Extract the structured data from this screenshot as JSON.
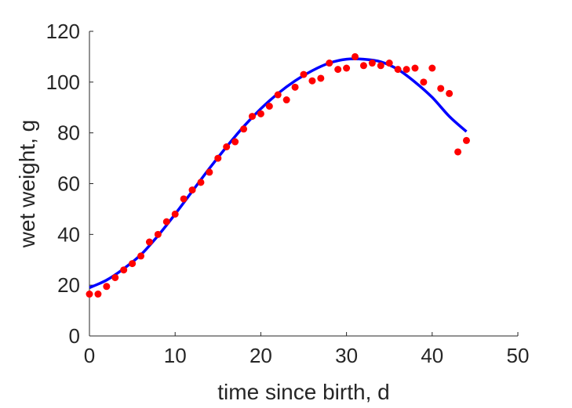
{
  "chart_data": {
    "type": "scatter",
    "title": "",
    "xlabel": "time since birth, d",
    "ylabel": "wet weight, g",
    "xlim": [
      0,
      50
    ],
    "ylim": [
      0,
      120
    ],
    "xticks": [
      "0",
      "10",
      "20",
      "30",
      "40",
      "50"
    ],
    "yticks": [
      "0",
      "20",
      "40",
      "60",
      "80",
      "100",
      "120"
    ],
    "grid": false,
    "legend": "none",
    "series": [
      {
        "kind": "points",
        "color": "#ff0000",
        "x": [
          0,
          1,
          2,
          3,
          4,
          5,
          6,
          7,
          8,
          9,
          10,
          11,
          12,
          13,
          14,
          15,
          16,
          17,
          18,
          19,
          20,
          21,
          22,
          23,
          24,
          25,
          26,
          27,
          28,
          29,
          30,
          31,
          32,
          33,
          34,
          35,
          36,
          37,
          38,
          39,
          40,
          41,
          42,
          43,
          44
        ],
        "y": [
          16.5,
          16.5,
          19.5,
          23,
          26,
          28.5,
          31.5,
          37,
          40,
          45,
          48,
          54,
          57.5,
          60.5,
          64.5,
          70,
          74.5,
          76.5,
          81.5,
          86.5,
          87.5,
          90.5,
          95,
          93,
          98,
          103,
          100.5,
          101.5,
          107.5,
          105,
          105.5,
          110,
          106.5,
          107.5,
          106.5,
          107.5,
          105,
          105,
          105.5,
          100,
          105.5,
          97.5,
          95.5,
          72.5,
          77
        ]
      },
      {
        "kind": "line",
        "color": "#0000ff",
        "x": [
          0,
          2,
          4,
          6,
          8,
          10,
          12,
          14,
          16,
          18,
          20,
          22,
          24,
          26,
          28,
          30,
          32,
          34,
          36,
          38,
          40,
          42,
          44
        ],
        "y": [
          19,
          22,
          26.5,
          32,
          39.5,
          48,
          57,
          66,
          74.5,
          82.5,
          89.5,
          95.5,
          100.5,
          104.5,
          107.5,
          109,
          109,
          108,
          105,
          100,
          94,
          86.5,
          80.5
        ]
      }
    ]
  }
}
